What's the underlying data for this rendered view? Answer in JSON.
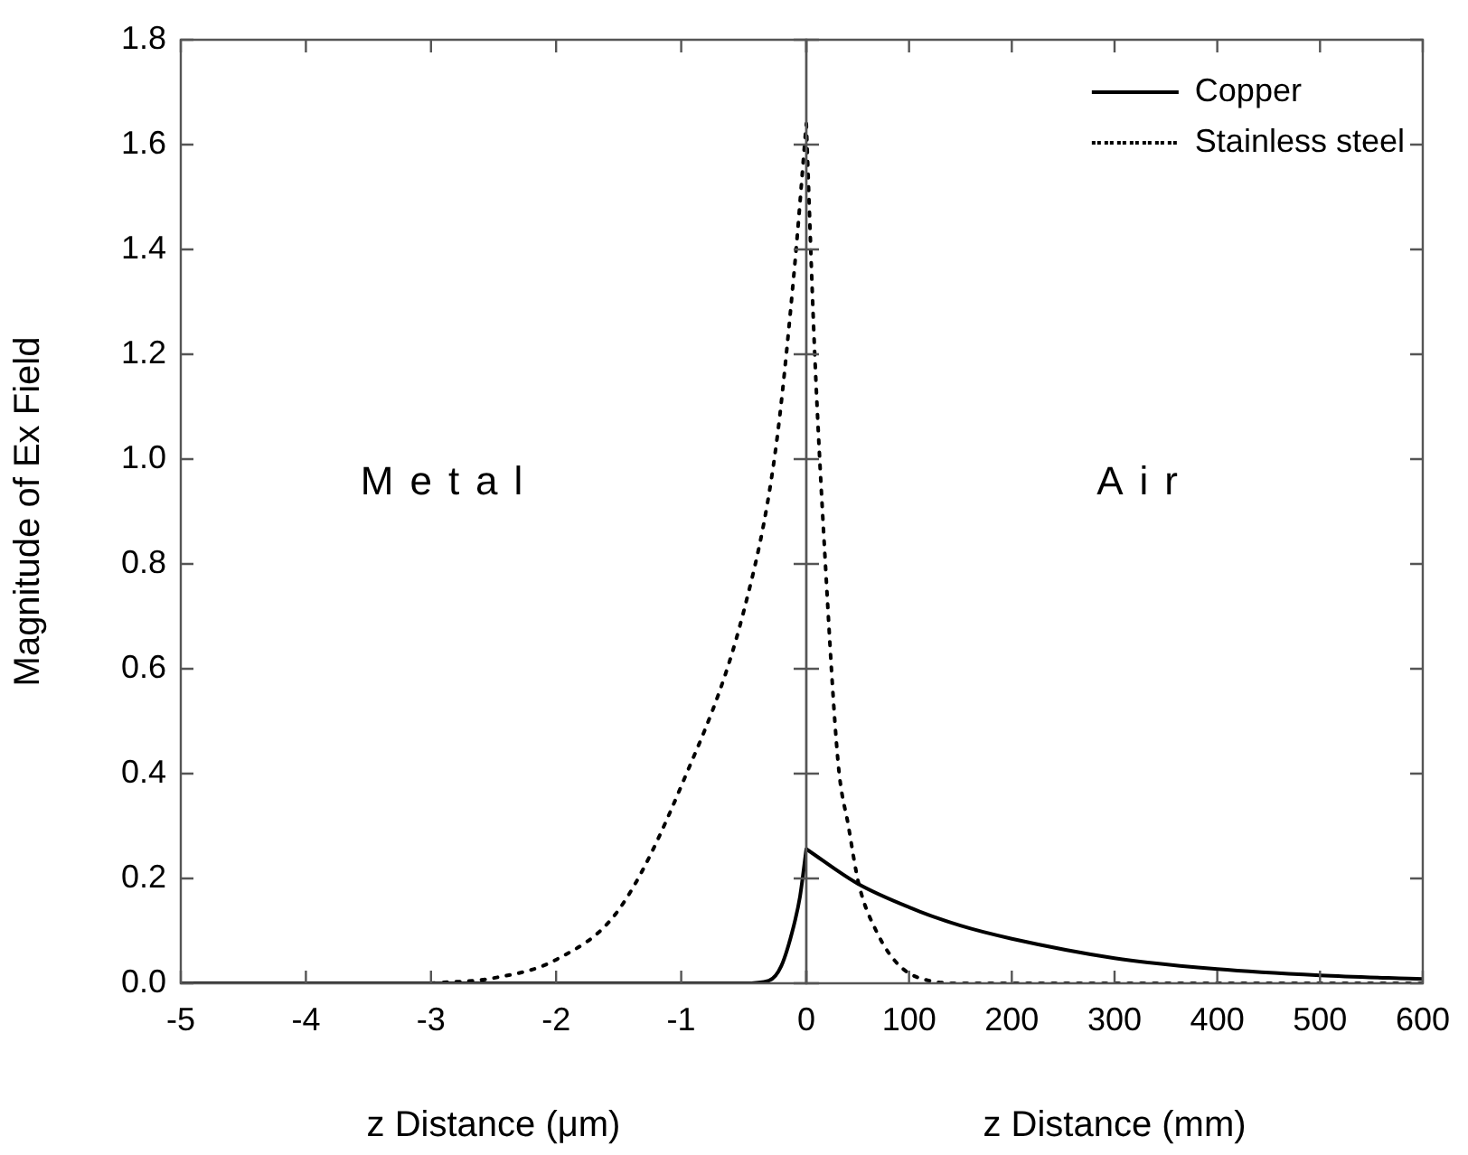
{
  "chart_data": [
    {
      "type": "line",
      "xlabel": "z Distance (μm)",
      "ylabel": "Magnitude of Ex Field",
      "xlim": [
        -5,
        0
      ],
      "xticks": [
        -5,
        -4,
        -3,
        -2,
        -1,
        0
      ],
      "ylim": [
        0,
        1.8
      ],
      "yticks": [
        {
          "value": 0,
          "label": "0.0"
        },
        0.2,
        0.4,
        0.6,
        0.8,
        {
          "value": 1,
          "label": "1.0"
        },
        1.2,
        1.4,
        1.6,
        1.8
      ],
      "grid": false,
      "legend": false,
      "marker": "none",
      "annotations": [
        "Metal"
      ],
      "series": [
        {
          "color": "#000000",
          "line_style": "solid",
          "x": [
            -5,
            -0.5,
            -0.3,
            -0.2,
            -0.1,
            -0.05,
            0
          ],
          "values": [
            0,
            0,
            0.005,
            0.033,
            0.11,
            0.166,
            0.256
          ]
        },
        {
          "color": "#000000",
          "line_style": "dotted",
          "x": [
            -3,
            -2.5,
            -2,
            -1.5,
            -1,
            -0.5,
            -0.25,
            -0.1,
            0
          ],
          "values": [
            0,
            0.01,
            0.045,
            0.14,
            0.376,
            0.71,
            1.01,
            1.35,
            1.64
          ]
        }
      ]
    },
    {
      "type": "line",
      "xlabel": "z Distance (mm)",
      "xlim": [
        0,
        600
      ],
      "xticks": [
        {
          "value": 0,
          "label": null
        },
        100,
        200,
        300,
        400,
        500,
        600
      ],
      "ylim": [
        0,
        1.8
      ],
      "yticks": [
        0,
        0.2,
        0.4,
        0.6,
        0.8,
        1,
        1.2,
        1.4,
        1.6,
        1.8
      ],
      "tick_labels": "x",
      "grid": false,
      "legend": "top right",
      "marker": "none",
      "annotations": [
        "Air"
      ],
      "series": [
        {
          "name": "Copper",
          "color": "#000000",
          "line_style": "solid",
          "x": [
            0,
            50,
            100,
            150,
            200,
            300,
            400,
            500,
            600
          ],
          "values": [
            0.256,
            0.19,
            0.145,
            0.11,
            0.085,
            0.048,
            0.027,
            0.015,
            0.008
          ]
        },
        {
          "name": "Stainless steel",
          "color": "#000000",
          "line_style": "dotted",
          "x": [
            0,
            8,
            18,
            31,
            41,
            51,
            68,
            91,
            125,
            150,
            600
          ],
          "values": [
            1.64,
            1.21,
            0.82,
            0.42,
            0.3,
            0.19,
            0.1,
            0.033,
            0.003,
            0,
            0
          ]
        }
      ]
    }
  ]
}
